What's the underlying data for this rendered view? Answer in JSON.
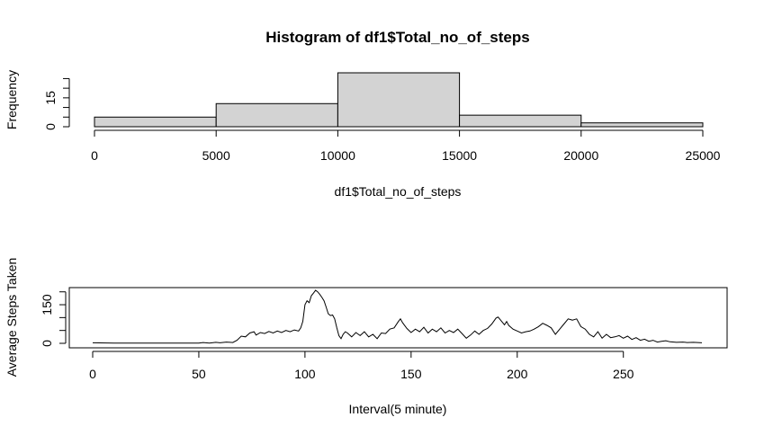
{
  "chart_data": [
    {
      "type": "bar",
      "title": "Histogram of df1$Total_no_of_steps",
      "xlabel": "df1$Total_no_of_steps",
      "ylabel": "Frequency",
      "bins": [
        {
          "from": 0,
          "to": 5000,
          "count": 5
        },
        {
          "from": 5000,
          "to": 10000,
          "count": 12
        },
        {
          "from": 10000,
          "to": 15000,
          "count": 28
        },
        {
          "from": 15000,
          "to": 20000,
          "count": 6
        },
        {
          "from": 20000,
          "to": 25000,
          "count": 2
        }
      ],
      "xlim": [
        0,
        25000
      ],
      "ylim": [
        0,
        28
      ],
      "x_ticks": [
        0,
        5000,
        10000,
        15000,
        20000,
        25000
      ],
      "x_tick_labels": [
        "0",
        "5000",
        "10000",
        "15000",
        "20000",
        "25000"
      ],
      "y_ticks": [
        0,
        5,
        10,
        15,
        20,
        25
      ],
      "y_tick_labels": [
        "0",
        "",
        "",
        "15",
        "",
        ""
      ],
      "fill_color": "#d3d3d3",
      "grid": false
    },
    {
      "type": "line",
      "xlabel": "Interval(5 minute)",
      "ylabel": "Average Steps Taken",
      "xlim": [
        0,
        287
      ],
      "ylim": [
        0,
        206
      ],
      "x_ticks": [
        0,
        50,
        100,
        150,
        200,
        250
      ],
      "x_tick_labels": [
        "0",
        "50",
        "100",
        "150",
        "200",
        "250"
      ],
      "y_ticks": [
        0,
        50,
        100,
        150,
        200
      ],
      "y_tick_labels": [
        "0",
        "",
        "",
        "150",
        ""
      ],
      "line_color": "#000000",
      "grid": false,
      "series": [
        {
          "points": [
            [
              0,
              2
            ],
            [
              10,
              1
            ],
            [
              20,
              1
            ],
            [
              30,
              1
            ],
            [
              40,
              1
            ],
            [
              50,
              1
            ],
            [
              52,
              3
            ],
            [
              55,
              1
            ],
            [
              58,
              4
            ],
            [
              60,
              2
            ],
            [
              63,
              5
            ],
            [
              66,
              3
            ],
            [
              68,
              12
            ],
            [
              70,
              28
            ],
            [
              72,
              25
            ],
            [
              74,
              40
            ],
            [
              76,
              45
            ],
            [
              77,
              32
            ],
            [
              79,
              42
            ],
            [
              81,
              38
            ],
            [
              83,
              46
            ],
            [
              85,
              40
            ],
            [
              87,
              48
            ],
            [
              89,
              42
            ],
            [
              91,
              50
            ],
            [
              93,
              45
            ],
            [
              95,
              52
            ],
            [
              97,
              48
            ],
            [
              98,
              60
            ],
            [
              99,
              85
            ],
            [
              100,
              150
            ],
            [
              101,
              165
            ],
            [
              102,
              158
            ],
            [
              103,
              185
            ],
            [
              104,
              195
            ],
            [
              105,
              206
            ],
            [
              106,
              200
            ],
            [
              107,
              190
            ],
            [
              108,
              178
            ],
            [
              109,
              165
            ],
            [
              110,
              140
            ],
            [
              111,
              115
            ],
            [
              112,
              108
            ],
            [
              113,
              110
            ],
            [
              114,
              95
            ],
            [
              115,
              60
            ],
            [
              116,
              30
            ],
            [
              117,
              18
            ],
            [
              118,
              35
            ],
            [
              119,
              45
            ],
            [
              120,
              40
            ],
            [
              122,
              25
            ],
            [
              124,
              42
            ],
            [
              126,
              30
            ],
            [
              128,
              45
            ],
            [
              130,
              25
            ],
            [
              132,
              35
            ],
            [
              134,
              18
            ],
            [
              136,
              40
            ],
            [
              138,
              38
            ],
            [
              140,
              55
            ],
            [
              142,
              60
            ],
            [
              144,
              85
            ],
            [
              145,
              95
            ],
            [
              146,
              80
            ],
            [
              148,
              58
            ],
            [
              150,
              42
            ],
            [
              152,
              55
            ],
            [
              154,
              45
            ],
            [
              156,
              62
            ],
            [
              158,
              40
            ],
            [
              160,
              55
            ],
            [
              162,
              45
            ],
            [
              164,
              60
            ],
            [
              166,
              40
            ],
            [
              168,
              50
            ],
            [
              170,
              42
            ],
            [
              172,
              55
            ],
            [
              174,
              38
            ],
            [
              176,
              20
            ],
            [
              178,
              32
            ],
            [
              180,
              48
            ],
            [
              182,
              35
            ],
            [
              184,
              50
            ],
            [
              186,
              58
            ],
            [
              188,
              75
            ],
            [
              190,
              98
            ],
            [
              191,
              102
            ],
            [
              192,
              92
            ],
            [
              194,
              72
            ],
            [
              195,
              85
            ],
            [
              196,
              70
            ],
            [
              198,
              55
            ],
            [
              200,
              48
            ],
            [
              202,
              40
            ],
            [
              204,
              45
            ],
            [
              206,
              48
            ],
            [
              208,
              55
            ],
            [
              210,
              65
            ],
            [
              212,
              78
            ],
            [
              214,
              70
            ],
            [
              216,
              60
            ],
            [
              218,
              35
            ],
            [
              220,
              55
            ],
            [
              222,
              75
            ],
            [
              224,
              95
            ],
            [
              226,
              90
            ],
            [
              228,
              95
            ],
            [
              230,
              65
            ],
            [
              232,
              55
            ],
            [
              234,
              35
            ],
            [
              236,
              25
            ],
            [
              238,
              45
            ],
            [
              240,
              20
            ],
            [
              242,
              35
            ],
            [
              244,
              22
            ],
            [
              246,
              25
            ],
            [
              248,
              30
            ],
            [
              250,
              20
            ],
            [
              252,
              28
            ],
            [
              254,
              15
            ],
            [
              256,
              22
            ],
            [
              258,
              12
            ],
            [
              260,
              16
            ],
            [
              262,
              8
            ],
            [
              264,
              12
            ],
            [
              266,
              5
            ],
            [
              268,
              8
            ],
            [
              270,
              10
            ],
            [
              272,
              6
            ],
            [
              275,
              4
            ],
            [
              278,
              5
            ],
            [
              280,
              3
            ],
            [
              283,
              4
            ],
            [
              287,
              2
            ]
          ]
        }
      ]
    }
  ]
}
